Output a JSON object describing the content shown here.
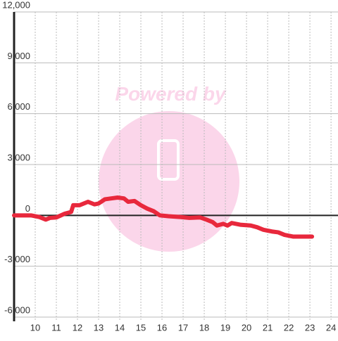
{
  "chart_data": {
    "type": "line",
    "watermark": "Powered by",
    "x": [
      9.0,
      9.8,
      10.2,
      10.5,
      10.7,
      11.0,
      11.4,
      11.7,
      11.8,
      12.1,
      12.5,
      12.8,
      13.0,
      13.3,
      13.6,
      13.9,
      14.2,
      14.4,
      14.7,
      15.0,
      15.3,
      15.6,
      15.9,
      16.3,
      16.9,
      17.3,
      17.8,
      18.1,
      18.4,
      18.6,
      18.9,
      19.1,
      19.3,
      19.7,
      20.2,
      20.5,
      20.8,
      21.2,
      21.5,
      21.8,
      22.2,
      23.1
    ],
    "series": [
      {
        "color": "#e8283c",
        "values": [
          0,
          0,
          -100,
          -250,
          -150,
          -120,
          100,
          200,
          600,
          600,
          800,
          650,
          700,
          950,
          1000,
          1050,
          1000,
          800,
          850,
          600,
          400,
          250,
          0,
          -50,
          -100,
          -150,
          -120,
          -250,
          -400,
          -600,
          -500,
          -600,
          -450,
          -550,
          -600,
          -700,
          -850,
          -950,
          -1000,
          -1150,
          -1250,
          -1250
        ]
      }
    ],
    "xlim": [
      9,
      24.33
    ],
    "xticks": [
      10,
      11,
      12,
      13,
      14,
      15,
      16,
      17,
      18,
      19,
      20,
      21,
      22,
      23,
      24
    ],
    "ylim": [
      -6250,
      12000
    ],
    "yticks": [
      {
        "value": 12000,
        "label": "12,000"
      },
      {
        "value": 9000,
        "label": "9,000"
      },
      {
        "value": 6000,
        "label": "6,000"
      },
      {
        "value": 3000,
        "label": "3,000"
      },
      0,
      {
        "value": -3000,
        "label": "-3,000"
      },
      {
        "value": -6000,
        "label": "-6,000"
      }
    ],
    "grid": true
  }
}
